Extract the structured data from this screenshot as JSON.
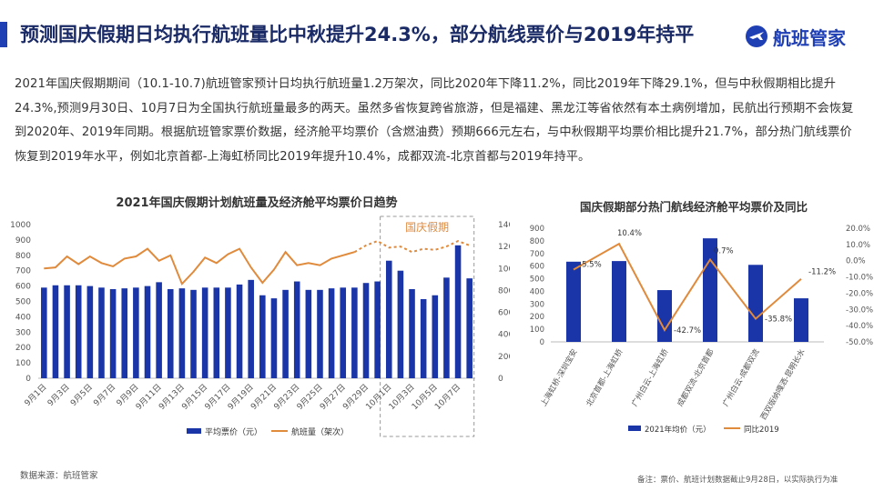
{
  "header": {
    "title": "预测国庆假期日均执行航班量比中秋提升24.3%，部分航线票价与2019年持平",
    "logo_text": "航班管家"
  },
  "summary_text": "2021年国庆假期期间（10.1-10.7)航班管家预计日均执行航班量1.2万架次，同比2020年下降11.2%，同比2019年下降29.1%，但与中秋假期相比提升24.3%,预测9月30日、10月7日为全国执行航班量最多的两天。虽然多省恢复跨省旅游，但是福建、黑龙江等省依然有本土病例增加，民航出行预期不会恢复到2020年、2019年同期。根据航班管家票价数据，经济舱平均票价（含燃油费）预期666元左右，与中秋假期平均票价相比提升21.7%，部分热门航线票价恢复到2019年水平，例如北京首都-上海虹桥同比2019年提升10.4%，成都双流-北京首都与2019年持平。",
  "footer": {
    "source": "数据来源：航班管家",
    "note": "备注：票价、航班计划数据截止9月28日，以实际执行为准"
  },
  "chart_data": [
    {
      "type": "bar",
      "title": "2021年国庆假期计划航班量及经济舱平均票价日趋势",
      "highlight_label": "国庆假期",
      "categories": [
        "9月1日",
        "9月2日",
        "9月3日",
        "9月4日",
        "9月5日",
        "9月6日",
        "9月7日",
        "9月8日",
        "9月9日",
        "9月10日",
        "9月11日",
        "9月12日",
        "9月13日",
        "9月14日",
        "9月15日",
        "9月16日",
        "9月17日",
        "9月18日",
        "9月19日",
        "9月20日",
        "9月21日",
        "9月22日",
        "9月23日",
        "9月24日",
        "9月25日",
        "9月26日",
        "9月27日",
        "9月28日",
        "9月29日",
        "9月30日",
        "10月1日",
        "10月2日",
        "10月3日",
        "10月4日",
        "10月5日",
        "10月6日",
        "10月7日",
        "10月8日"
      ],
      "tick_labels": [
        "9月1日",
        "9月3日",
        "9月5日",
        "9月7日",
        "9月9日",
        "9月11日",
        "9月13日",
        "9月15日",
        "9月17日",
        "9月19日",
        "9月21日",
        "9月23日",
        "9月25日",
        "9月27日",
        "9月29日",
        "10月1日",
        "10月3日",
        "10月5日",
        "10月7日"
      ],
      "highlight_range": [
        "9月30日",
        "10月8日"
      ],
      "ylim_left": [
        0,
        1000
      ],
      "yticks_left": [
        "0",
        "100",
        "200",
        "300",
        "400",
        "500",
        "600",
        "700",
        "800",
        "900",
        "1000"
      ],
      "ylim_right": [
        0,
        14000
      ],
      "yticks_right": [
        "0",
        "2000",
        "4000",
        "6000",
        "8000",
        "10000",
        "12000",
        "14000"
      ],
      "series": [
        {
          "name": "平均票价（元）",
          "type": "bar",
          "axis": "left",
          "color": "#1a35a8",
          "values": [
            590,
            605,
            605,
            605,
            600,
            590,
            580,
            585,
            590,
            600,
            625,
            580,
            585,
            575,
            590,
            590,
            590,
            610,
            640,
            540,
            520,
            575,
            630,
            575,
            575,
            585,
            590,
            590,
            620,
            630,
            765,
            700,
            580,
            515,
            540,
            655,
            865,
            650
          ]
        },
        {
          "name": "航班量（架次）",
          "type": "line",
          "axis": "right",
          "color": "#e08a3c",
          "forecast_from": "9月28日",
          "values": [
            10000,
            10100,
            11100,
            10400,
            11100,
            10500,
            10200,
            10900,
            11100,
            11800,
            10700,
            11200,
            8600,
            9700,
            11000,
            10500,
            11300,
            11800,
            10100,
            8700,
            9900,
            11500,
            10300,
            10500,
            10300,
            10900,
            11200,
            11500,
            12100,
            12500,
            11900,
            12000,
            11500,
            11800,
            11700,
            12000,
            12500,
            12100
          ]
        }
      ]
    },
    {
      "type": "bar",
      "title": "国庆假期部分热门航线经济舱平均票价及同比",
      "categories": [
        "上海虹桥-深圳宝安",
        "北京首都-上海虹桥",
        "广州白云-上海虹桥",
        "成都双流-北京首都",
        "广州白云-成都双流",
        "西双版纳嘎洒-昆明长水"
      ],
      "ylim_left": [
        0,
        900
      ],
      "yticks_left": [
        "0",
        "100",
        "200",
        "300",
        "400",
        "500",
        "600",
        "700",
        "800",
        "900"
      ],
      "ylim_right": [
        -50,
        20
      ],
      "yticks_right": [
        "20.0%",
        "10.0%",
        "0.0%",
        "-10.0%",
        "-20.0%",
        "-30.0%",
        "-40.0%",
        "-50.0%"
      ],
      "series": [
        {
          "name": "2021年均价（元）",
          "type": "bar",
          "axis": "left",
          "color": "#1a35a8",
          "values": [
            635,
            640,
            410,
            820,
            610,
            345
          ]
        },
        {
          "name": "同比2019",
          "type": "line",
          "axis": "right",
          "color": "#e08a3c",
          "values": [
            -5.5,
            10.4,
            -42.7,
            0.7,
            -35.8,
            -11.2
          ],
          "labels": [
            "-5.5%",
            "10.4%",
            "-42.7%",
            "0.7%",
            "-35.8%",
            "-11.2%"
          ]
        }
      ]
    }
  ]
}
